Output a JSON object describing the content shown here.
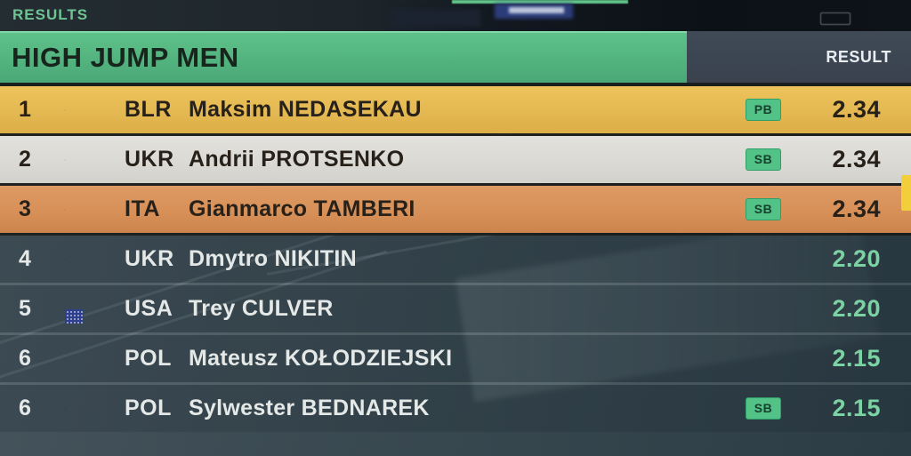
{
  "top_bar": {
    "results_label": "RESULTS"
  },
  "header": {
    "title": "HIGH JUMP MEN",
    "result_column_label": "RESULT"
  },
  "table": {
    "rows": [
      {
        "rank": "1",
        "flag": "blr",
        "country_code": "BLR",
        "athlete": "Maksim NEDASEKAU",
        "badge": "PB",
        "result": "2.34",
        "style": "gold"
      },
      {
        "rank": "2",
        "flag": "ukr",
        "country_code": "UKR",
        "athlete": "Andrii PROTSENKO",
        "badge": "SB",
        "result": "2.34",
        "style": "silver"
      },
      {
        "rank": "3",
        "flag": "ita",
        "country_code": "ITA",
        "athlete": "Gianmarco TAMBERI",
        "badge": "SB",
        "result": "2.34",
        "style": "bronze"
      },
      {
        "rank": "4",
        "flag": "ukr",
        "country_code": "UKR",
        "athlete": "Dmytro NIKITIN",
        "badge": "",
        "result": "2.20",
        "style": "dark"
      },
      {
        "rank": "5",
        "flag": "usa",
        "country_code": "USA",
        "athlete": "Trey CULVER",
        "badge": "",
        "result": "2.20",
        "style": "dark"
      },
      {
        "rank": "6",
        "flag": "pol",
        "country_code": "POL",
        "athlete": "Mateusz KOŁODZIEJSKI",
        "badge": "",
        "result": "2.15",
        "style": "dark"
      },
      {
        "rank": "6",
        "flag": "pol",
        "country_code": "POL",
        "athlete": "Sylwester BEDNAREK",
        "badge": "SB",
        "result": "2.15",
        "style": "dark"
      }
    ]
  },
  "colors": {
    "accent_green": "#52b27e",
    "badge_green": "#53c287",
    "gold_row": "#e3b751",
    "silver_row": "#dad9d4",
    "bronze_row": "#d68f57",
    "dark_row_overlay": "#37474e",
    "result_text_green": "#7bd2a2",
    "results_label_green": "#6fc494",
    "edge_accent_yellow": "#f2cf3a"
  }
}
